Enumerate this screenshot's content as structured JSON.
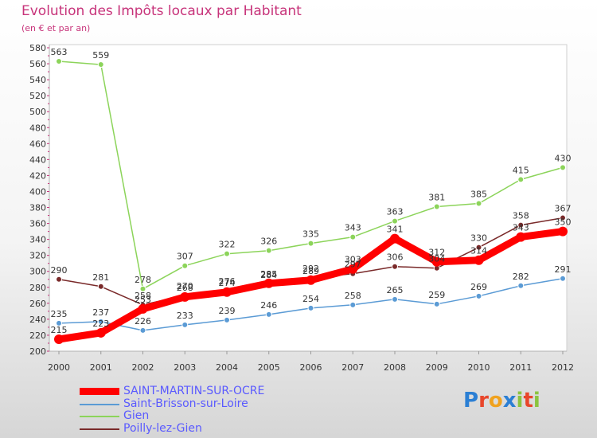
{
  "header": {
    "title": "Evolution des Impôts locaux par Habitant",
    "subtitle": "(en € et par an)"
  },
  "logo": {
    "text": "Proxiti",
    "letters": [
      "P",
      "r",
      "o",
      "x",
      "i",
      "t",
      "i"
    ],
    "colors": [
      "#2b7fd4",
      "#e8462b",
      "#f0a21f",
      "#2b7fd4",
      "#8bc43f",
      "#e8462b",
      "#8bc43f"
    ]
  },
  "chart_data": {
    "type": "line",
    "title": "Evolution des Impôts locaux par Habitant",
    "subtitle": "(en € et par an)",
    "x": [
      "2000",
      "2001",
      "2002",
      "2003",
      "2004",
      "2005",
      "2006",
      "2007",
      "2008",
      "2009",
      "2010",
      "2011",
      "2012"
    ],
    "ylim": [
      200,
      580
    ],
    "yticks": [
      200,
      220,
      240,
      260,
      280,
      300,
      320,
      340,
      360,
      380,
      400,
      420,
      440,
      460,
      480,
      500,
      520,
      540,
      560,
      580
    ],
    "grid": false,
    "legend_position": "bottom-left",
    "series": [
      {
        "name": "SAINT-MARTIN-SUR-OCRE",
        "color": "#ff0000",
        "values": [
          215,
          223,
          253,
          268,
          274,
          285,
          289,
          303,
          341,
          312,
          314,
          343,
          350
        ],
        "labels": [
          "215",
          "223",
          "253",
          "268",
          "274",
          "285",
          "289",
          "303",
          "341",
          "312",
          "314",
          "343",
          "350"
        ]
      },
      {
        "name": "Saint-Brisson-sur-Loire",
        "color": "#5b9bd5",
        "values": [
          235,
          237,
          226,
          233,
          239,
          246,
          254,
          258,
          265,
          259,
          269,
          282,
          291
        ],
        "labels": [
          "235",
          "237",
          "226",
          "233",
          "239",
          "246",
          "254",
          "258",
          "265",
          "259",
          "269",
          "282",
          "291"
        ]
      },
      {
        "name": "Gien",
        "color": "#8cd45a",
        "values": [
          563,
          559,
          278,
          307,
          322,
          326,
          335,
          343,
          363,
          381,
          385,
          415,
          430
        ],
        "labels": [
          "563",
          "559",
          "278",
          "307",
          "322",
          "326",
          "335",
          "343",
          "363",
          "381",
          "385",
          "415",
          "430"
        ]
      },
      {
        "name": "Poilly-lez-Gien",
        "color": "#7a2a2a",
        "values": [
          290,
          281,
          258,
          270,
          276,
          284,
          292,
          297,
          306,
          304,
          330,
          358,
          367
        ],
        "labels": [
          "290",
          "281",
          "258",
          "270",
          "276",
          "284",
          "292",
          "297",
          "306",
          "304",
          "330",
          "358",
          "367"
        ]
      }
    ]
  }
}
